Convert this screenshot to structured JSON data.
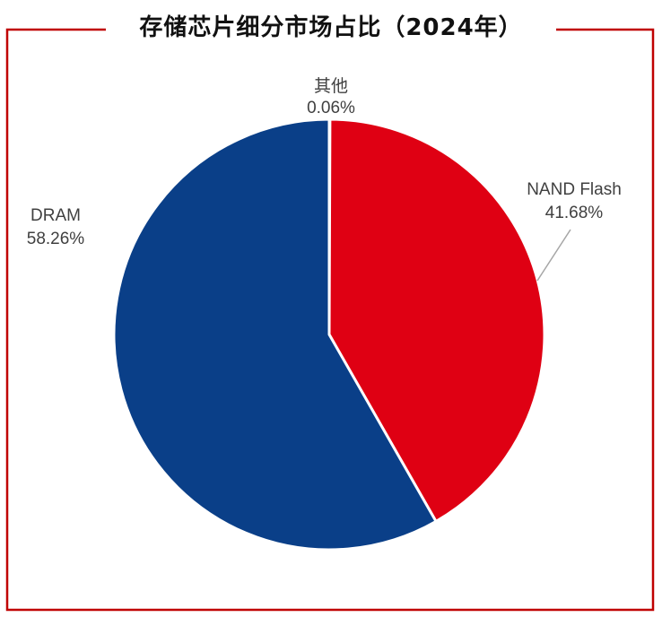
{
  "colors": {
    "border": "#c00000",
    "dram": "#0a3f88",
    "nand": "#df0013",
    "other": "#9a9a9a",
    "label": "#404040",
    "leader": "#a6a6a6"
  },
  "chart_data": {
    "type": "pie",
    "title": "存储芯片细分市场占比（2024年）",
    "slices": [
      {
        "name": "其他",
        "value": 0.06,
        "label": "0.06%",
        "color": "#9a9a9a"
      },
      {
        "name": "NAND Flash",
        "value": 41.68,
        "label": "41.68%",
        "color": "#df0013"
      },
      {
        "name": "DRAM",
        "value": 58.26,
        "label": "58.26%",
        "color": "#0a3f88"
      }
    ],
    "start_angle_deg": 0,
    "direction": "clockwise",
    "unit": "%"
  }
}
